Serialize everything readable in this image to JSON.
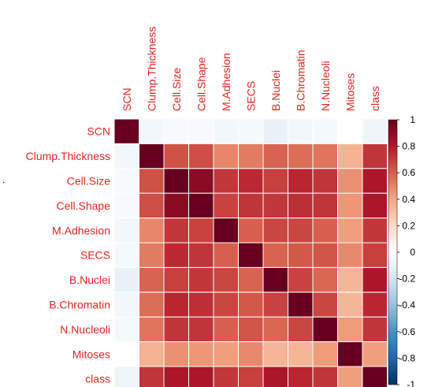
{
  "chart_data": {
    "type": "heatmap",
    "title": "",
    "variables": [
      "SCN",
      "Clump.Thickness",
      "Cell.Size",
      "Cell.Shape",
      "M.Adhesion",
      "SECS",
      "B.Nuclei",
      "B.Chromatin",
      "N.Nucleoli",
      "Mitoses",
      "class"
    ],
    "matrix": [
      [
        1.0,
        -0.06,
        -0.04,
        -0.04,
        -0.06,
        -0.05,
        -0.1,
        -0.06,
        -0.05,
        0.0,
        -0.08
      ],
      [
        -0.06,
        1.0,
        0.64,
        0.65,
        0.49,
        0.52,
        0.59,
        0.56,
        0.54,
        0.35,
        0.72
      ],
      [
        -0.04,
        0.64,
        1.0,
        0.91,
        0.71,
        0.75,
        0.69,
        0.76,
        0.72,
        0.46,
        0.82
      ],
      [
        -0.04,
        0.65,
        0.91,
        1.0,
        0.68,
        0.72,
        0.71,
        0.74,
        0.72,
        0.44,
        0.82
      ],
      [
        -0.06,
        0.49,
        0.71,
        0.68,
        1.0,
        0.6,
        0.67,
        0.67,
        0.6,
        0.42,
        0.71
      ],
      [
        -0.05,
        0.52,
        0.75,
        0.72,
        0.6,
        1.0,
        0.59,
        0.62,
        0.63,
        0.48,
        0.69
      ],
      [
        -0.1,
        0.59,
        0.69,
        0.71,
        0.67,
        0.59,
        1.0,
        0.68,
        0.58,
        0.34,
        0.82
      ],
      [
        -0.06,
        0.56,
        0.76,
        0.74,
        0.67,
        0.62,
        0.68,
        1.0,
        0.67,
        0.34,
        0.76
      ],
      [
        -0.05,
        0.54,
        0.72,
        0.72,
        0.6,
        0.63,
        0.58,
        0.67,
        1.0,
        0.43,
        0.72
      ],
      [
        0.0,
        0.35,
        0.46,
        0.44,
        0.42,
        0.48,
        0.34,
        0.34,
        0.43,
        1.0,
        0.42
      ],
      [
        -0.08,
        0.72,
        0.82,
        0.82,
        0.71,
        0.69,
        0.82,
        0.76,
        0.72,
        0.42,
        1.0
      ]
    ],
    "colorbar": {
      "range": [
        -1,
        1
      ],
      "ticks": [
        "1",
        "0.8",
        "0.6",
        "0.4",
        "0.2",
        "0",
        "-0.2",
        "-0.4",
        "-0.6",
        "-0.8",
        "-1"
      ],
      "colors": [
        "#67001f",
        "#b2182b",
        "#d6604d",
        "#f4a582",
        "#fddbc7",
        "#ffffff",
        "#d1e5f0",
        "#92c5de",
        "#4393c3",
        "#2166ac",
        "#053061"
      ]
    }
  }
}
